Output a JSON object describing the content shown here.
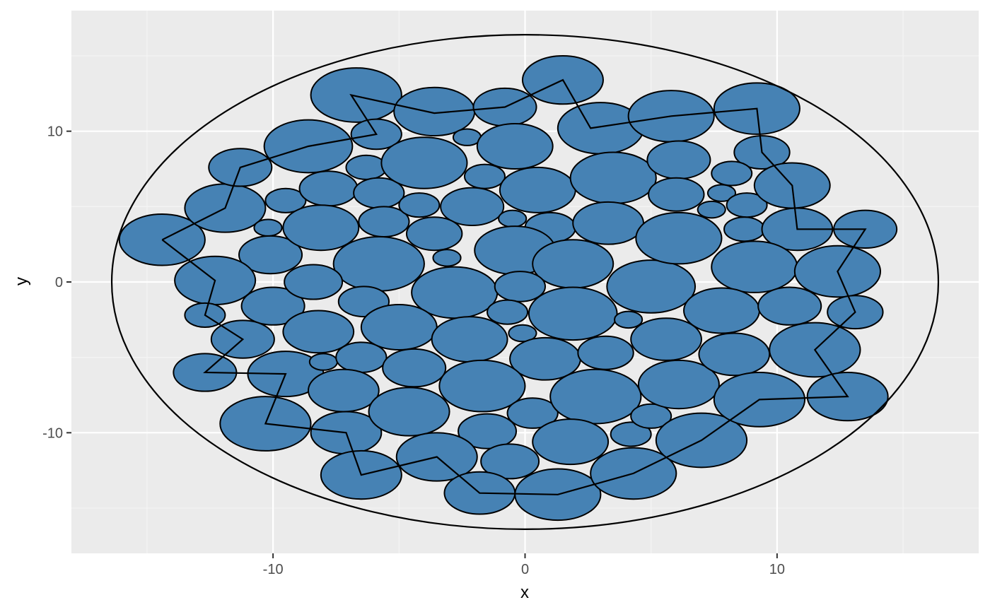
{
  "colors": {
    "panel_background": "#ebebeb",
    "grid_major": "#ffffff",
    "grid_minor": "#f5f5f5",
    "circle_fill": "#4682b4",
    "circle_stroke": "#000000",
    "boundary_stroke": "#000000",
    "path_stroke": "#000000"
  },
  "chart_data": {
    "type": "scatter",
    "xlabel": "x",
    "ylabel": "y",
    "xlim": [
      -18,
      18
    ],
    "ylim": [
      -18,
      18
    ],
    "x_ticks": [
      -10,
      0,
      10
    ],
    "y_ticks": [
      -10,
      0,
      10
    ],
    "x_tick_labels": [
      "-10",
      "0",
      "10"
    ],
    "y_tick_labels": [
      "-10",
      "0",
      "10"
    ],
    "grid": true,
    "legend": "none",
    "boundary": {
      "cx": 0,
      "cy": 0,
      "r": 16.4
    },
    "circles": [
      {
        "x": -14.4,
        "y": 2.8,
        "r": 1.7
      },
      {
        "x": -11.9,
        "y": 4.9,
        "r": 1.6
      },
      {
        "x": -11.3,
        "y": 7.6,
        "r": 1.25
      },
      {
        "x": -9.5,
        "y": 5.4,
        "r": 0.8
      },
      {
        "x": -10.2,
        "y": 3.6,
        "r": 0.55
      },
      {
        "x": -10.1,
        "y": 1.8,
        "r": 1.25
      },
      {
        "x": -12.3,
        "y": 0.1,
        "r": 1.6
      },
      {
        "x": -12.7,
        "y": -2.2,
        "r": 0.8
      },
      {
        "x": -10.0,
        "y": -1.6,
        "r": 1.25
      },
      {
        "x": -11.2,
        "y": -3.8,
        "r": 1.25
      },
      {
        "x": -12.7,
        "y": -6.0,
        "r": 1.25
      },
      {
        "x": -9.5,
        "y": -6.1,
        "r": 1.5
      },
      {
        "x": -10.3,
        "y": -9.4,
        "r": 1.8
      },
      {
        "x": -8.6,
        "y": 9.0,
        "r": 1.75
      },
      {
        "x": -6.7,
        "y": 12.4,
        "r": 1.8
      },
      {
        "x": -5.9,
        "y": 9.8,
        "r": 1.0
      },
      {
        "x": -6.3,
        "y": 7.6,
        "r": 0.8
      },
      {
        "x": -7.8,
        "y": 6.2,
        "r": 1.15
      },
      {
        "x": -5.8,
        "y": 5.9,
        "r": 1.0
      },
      {
        "x": -8.1,
        "y": 3.6,
        "r": 1.5
      },
      {
        "x": -5.6,
        "y": 4.0,
        "r": 1.0
      },
      {
        "x": -5.8,
        "y": 1.2,
        "r": 1.8
      },
      {
        "x": -8.4,
        "y": 0.0,
        "r": 1.15
      },
      {
        "x": -6.4,
        "y": -1.3,
        "r": 1.0
      },
      {
        "x": -8.2,
        "y": -3.3,
        "r": 1.4
      },
      {
        "x": -8.0,
        "y": -5.3,
        "r": 0.55
      },
      {
        "x": -6.5,
        "y": -5.0,
        "r": 1.0
      },
      {
        "x": -7.2,
        "y": -7.2,
        "r": 1.4
      },
      {
        "x": -7.1,
        "y": -10.0,
        "r": 1.4
      },
      {
        "x": -6.5,
        "y": -12.8,
        "r": 1.6
      },
      {
        "x": -3.6,
        "y": 11.3,
        "r": 1.6
      },
      {
        "x": -2.3,
        "y": 9.6,
        "r": 0.55
      },
      {
        "x": -4.0,
        "y": 7.9,
        "r": 1.7
      },
      {
        "x": -1.6,
        "y": 7.0,
        "r": 0.8
      },
      {
        "x": -4.2,
        "y": 5.1,
        "r": 0.8
      },
      {
        "x": -2.1,
        "y": 5.0,
        "r": 1.25
      },
      {
        "x": -3.6,
        "y": 3.2,
        "r": 1.1
      },
      {
        "x": -3.1,
        "y": 1.6,
        "r": 0.55
      },
      {
        "x": -0.5,
        "y": 4.2,
        "r": 0.55
      },
      {
        "x": -0.8,
        "y": 11.6,
        "r": 1.25
      },
      {
        "x": -0.4,
        "y": 9.0,
        "r": 1.5
      },
      {
        "x": 0.5,
        "y": 6.1,
        "r": 1.5
      },
      {
        "x": 1.0,
        "y": 3.6,
        "r": 1.0
      },
      {
        "x": -0.4,
        "y": 2.1,
        "r": 1.6
      },
      {
        "x": 1.5,
        "y": 13.4,
        "r": 1.6
      },
      {
        "x": 3.0,
        "y": 10.2,
        "r": 1.7
      },
      {
        "x": 3.5,
        "y": 6.9,
        "r": 1.7
      },
      {
        "x": 3.3,
        "y": 3.9,
        "r": 1.4
      },
      {
        "x": 1.9,
        "y": 1.2,
        "r": 1.6
      },
      {
        "x": -2.8,
        "y": -0.7,
        "r": 1.7
      },
      {
        "x": -0.2,
        "y": -0.3,
        "r": 1.0
      },
      {
        "x": -0.7,
        "y": -2.0,
        "r": 0.8
      },
      {
        "x": -5.0,
        "y": -3.0,
        "r": 1.5
      },
      {
        "x": -2.2,
        "y": -3.8,
        "r": 1.5
      },
      {
        "x": -0.1,
        "y": -3.4,
        "r": 0.55
      },
      {
        "x": -4.4,
        "y": -5.7,
        "r": 1.25
      },
      {
        "x": 1.9,
        "y": -2.1,
        "r": 1.75
      },
      {
        "x": 0.8,
        "y": -5.1,
        "r": 1.4
      },
      {
        "x": 5.0,
        "y": -0.3,
        "r": 1.75
      },
      {
        "x": 4.1,
        "y": -2.5,
        "r": 0.55
      },
      {
        "x": 3.2,
        "y": -4.7,
        "r": 1.1
      },
      {
        "x": 5.6,
        "y": -3.8,
        "r": 1.4
      },
      {
        "x": -1.7,
        "y": -6.9,
        "r": 1.7
      },
      {
        "x": -4.6,
        "y": -8.6,
        "r": 1.6
      },
      {
        "x": 0.3,
        "y": -8.7,
        "r": 1.0
      },
      {
        "x": 2.8,
        "y": -7.6,
        "r": 1.8
      },
      {
        "x": -1.5,
        "y": -9.9,
        "r": 1.15
      },
      {
        "x": -3.5,
        "y": -11.6,
        "r": 1.6
      },
      {
        "x": -0.6,
        "y": -11.9,
        "r": 1.15
      },
      {
        "x": 1.8,
        "y": -10.6,
        "r": 1.5
      },
      {
        "x": 4.2,
        "y": -10.1,
        "r": 0.8
      },
      {
        "x": 5.0,
        "y": -8.9,
        "r": 0.8
      },
      {
        "x": 6.1,
        "y": -6.8,
        "r": 1.6
      },
      {
        "x": -1.8,
        "y": -14.0,
        "r": 1.4
      },
      {
        "x": 1.3,
        "y": -14.1,
        "r": 1.7
      },
      {
        "x": 4.3,
        "y": -12.7,
        "r": 1.7
      },
      {
        "x": 7.0,
        "y": -10.5,
        "r": 1.8
      },
      {
        "x": 5.8,
        "y": 11.0,
        "r": 1.7
      },
      {
        "x": 9.2,
        "y": 11.5,
        "r": 1.7
      },
      {
        "x": 6.1,
        "y": 8.1,
        "r": 1.25
      },
      {
        "x": 9.4,
        "y": 8.6,
        "r": 1.1
      },
      {
        "x": 8.2,
        "y": 7.2,
        "r": 0.8
      },
      {
        "x": 6.0,
        "y": 5.8,
        "r": 1.1
      },
      {
        "x": 7.8,
        "y": 5.9,
        "r": 0.55
      },
      {
        "x": 7.4,
        "y": 4.8,
        "r": 0.55
      },
      {
        "x": 8.8,
        "y": 5.1,
        "r": 0.8
      },
      {
        "x": 10.6,
        "y": 6.4,
        "r": 1.5
      },
      {
        "x": 8.7,
        "y": 3.5,
        "r": 0.8
      },
      {
        "x": 6.1,
        "y": 2.9,
        "r": 1.7
      },
      {
        "x": 10.8,
        "y": 3.5,
        "r": 1.4
      },
      {
        "x": 13.5,
        "y": 3.5,
        "r": 1.25
      },
      {
        "x": 9.1,
        "y": 1.0,
        "r": 1.7
      },
      {
        "x": 12.4,
        "y": 0.7,
        "r": 1.7
      },
      {
        "x": 7.8,
        "y": -1.9,
        "r": 1.5
      },
      {
        "x": 10.5,
        "y": -1.6,
        "r": 1.25
      },
      {
        "x": 13.1,
        "y": -2.0,
        "r": 1.1
      },
      {
        "x": 8.3,
        "y": -4.8,
        "r": 1.4
      },
      {
        "x": 11.5,
        "y": -4.5,
        "r": 1.8
      },
      {
        "x": 9.3,
        "y": -7.8,
        "r": 1.8
      },
      {
        "x": 12.8,
        "y": -7.6,
        "r": 1.6
      }
    ],
    "path": [
      [
        -14.4,
        2.8
      ],
      [
        -11.9,
        4.9
      ],
      [
        -11.3,
        7.6
      ],
      [
        -8.6,
        9.0
      ],
      [
        -5.9,
        9.8
      ],
      [
        -6.9,
        12.4
      ],
      [
        -3.6,
        11.2
      ],
      [
        -0.8,
        11.6
      ],
      [
        1.5,
        13.4
      ],
      [
        2.6,
        10.2
      ],
      [
        5.8,
        11.0
      ],
      [
        9.2,
        11.5
      ],
      [
        9.4,
        8.6
      ],
      [
        10.6,
        6.4
      ],
      [
        10.8,
        3.5
      ],
      [
        13.5,
        3.5
      ],
      [
        12.4,
        0.7
      ],
      [
        13.1,
        -2.0
      ],
      [
        11.5,
        -4.5
      ],
      [
        12.8,
        -7.6
      ],
      [
        9.3,
        -7.8
      ],
      [
        7.0,
        -10.5
      ],
      [
        4.3,
        -12.7
      ],
      [
        1.3,
        -14.1
      ],
      [
        -1.8,
        -14.0
      ],
      [
        -3.5,
        -11.6
      ],
      [
        -6.5,
        -12.8
      ],
      [
        -7.1,
        -10.0
      ],
      [
        -10.3,
        -9.4
      ],
      [
        -9.5,
        -6.1
      ],
      [
        -12.7,
        -6.0
      ],
      [
        -11.2,
        -3.8
      ],
      [
        -12.7,
        -2.2
      ],
      [
        -12.3,
        0.1
      ],
      [
        -14.4,
        2.8
      ]
    ]
  }
}
